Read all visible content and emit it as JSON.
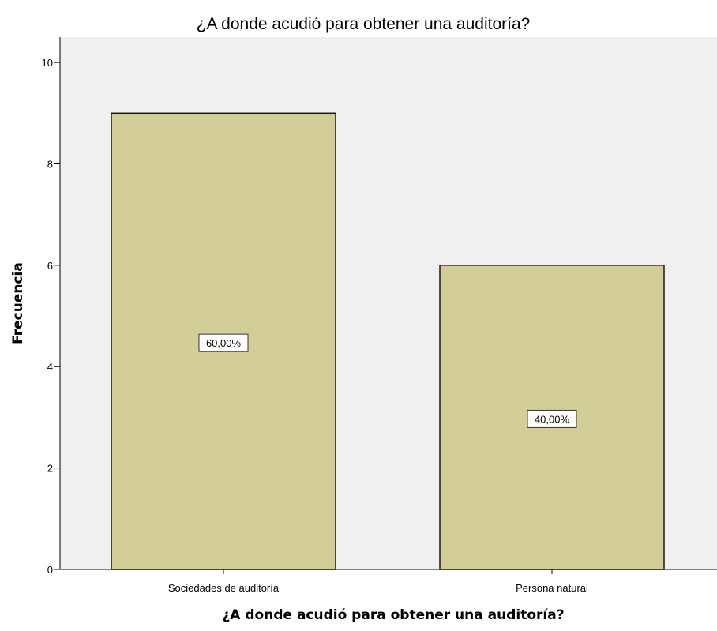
{
  "chart_data": {
    "type": "bar",
    "title": "¿A donde acudió para obtener una auditoría?",
    "xlabel": "¿A donde acudió para obtener una auditoría?",
    "ylabel": "Frecuencia",
    "categories": [
      "Sociedades de auditoría",
      "Persona natural"
    ],
    "values": [
      9,
      6
    ],
    "data_labels": [
      "60,00%",
      "40,00%"
    ],
    "ylim": [
      0,
      10.5
    ],
    "yticks": [
      0,
      2,
      4,
      6,
      8,
      10
    ],
    "grid": false,
    "colors": {
      "plot_background": "#f0f0f0",
      "bar_fill": "#d3ce97",
      "bar_stroke": "#1a1a1a"
    }
  }
}
